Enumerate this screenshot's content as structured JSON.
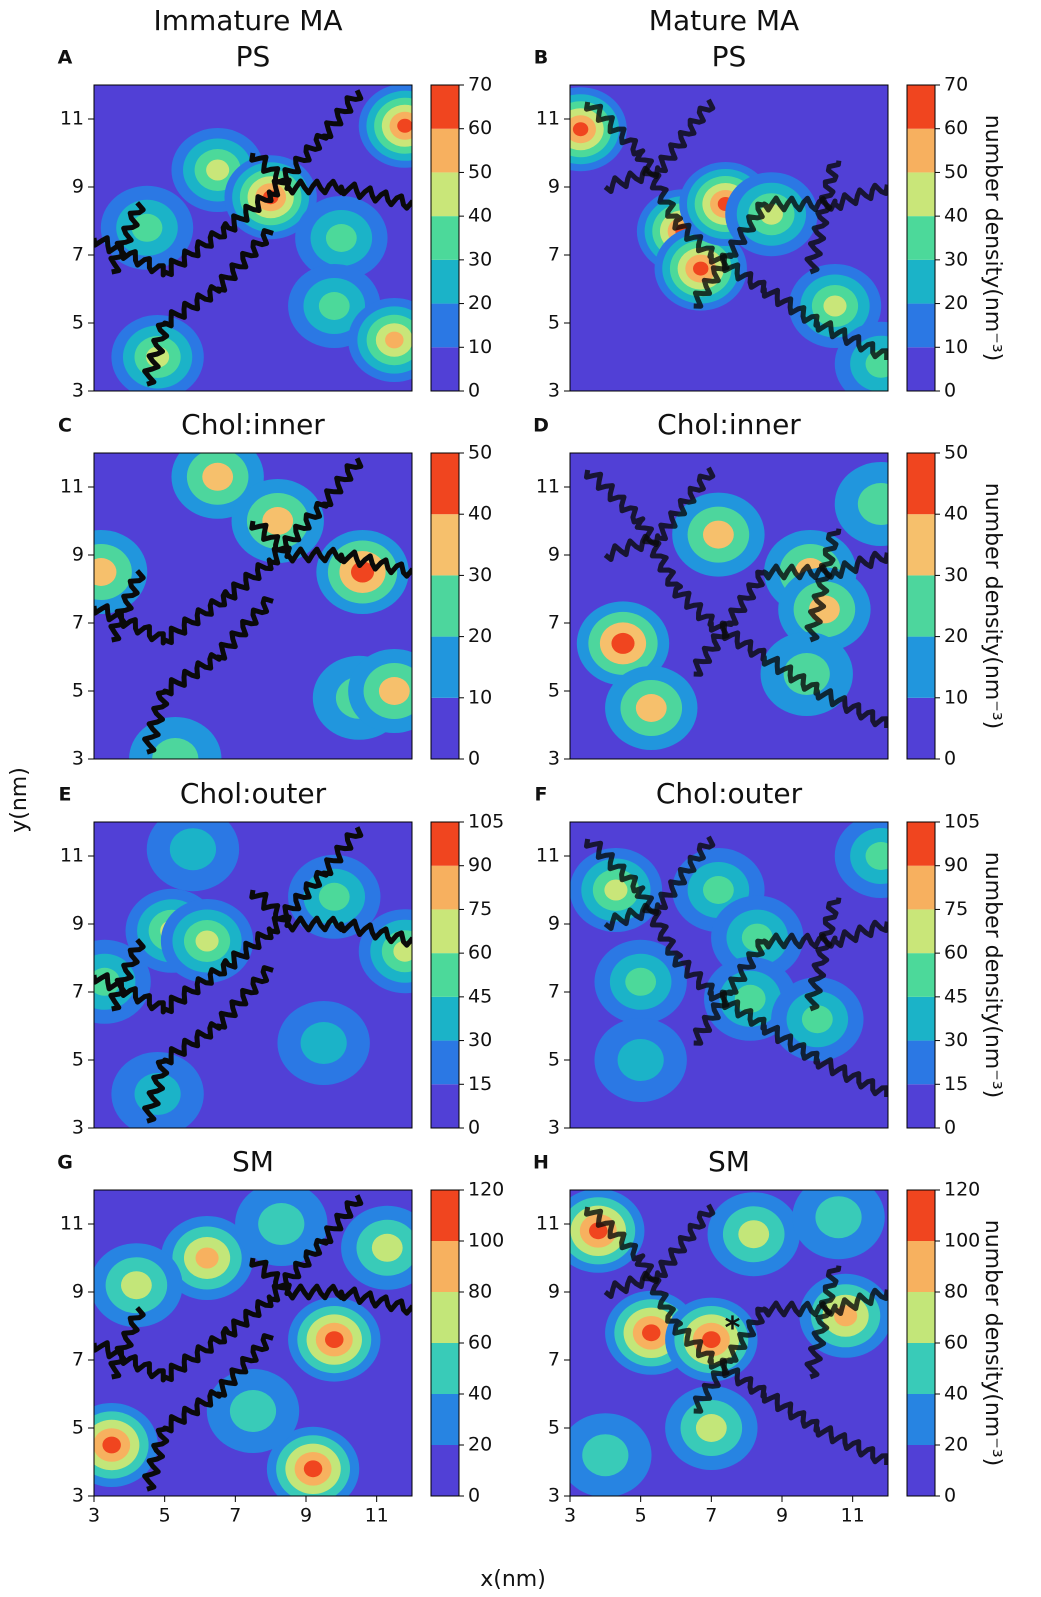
{
  "figure": {
    "column_titles": [
      "Immature MA",
      "Mature MA"
    ],
    "xlabel": "x(nm)",
    "ylabel": "y(nm)"
  },
  "chart_data": [
    {
      "type": "contour",
      "panel": "A",
      "title": "PS",
      "xlim": [
        3,
        12
      ],
      "ylim": [
        3,
        12
      ],
      "yticks": [
        3,
        5,
        7,
        9,
        11
      ],
      "levels": [
        0,
        10,
        20,
        30,
        40,
        50,
        60,
        70
      ],
      "colors": [
        "#5140d6",
        "#2b78e4",
        "#1bb3c8",
        "#4cd99a",
        "#c9e679",
        "#f7b05f",
        "#f0451f"
      ],
      "x": [
        4.5,
        6.5,
        8,
        10,
        11.8,
        9.8,
        11.5,
        4.8
      ],
      "y": [
        7.8,
        9.5,
        8.7,
        7.5,
        10.8,
        5.5,
        4.5,
        4
      ],
      "values": [
        35,
        45,
        70,
        40,
        65,
        40,
        55,
        50
      ]
    },
    {
      "type": "contour",
      "panel": "B",
      "title": "PS",
      "xlim": [
        3,
        12
      ],
      "ylim": [
        3,
        12
      ],
      "yticks": [
        3,
        5,
        7,
        9,
        11
      ],
      "levels": [
        0,
        10,
        20,
        30,
        40,
        50,
        60,
        70
      ],
      "colors": [
        "#5140d6",
        "#2b78e4",
        "#1bb3c8",
        "#4cd99a",
        "#c9e679",
        "#f7b05f",
        "#f0451f"
      ],
      "colorbar_label": "number density(nm⁻³)",
      "x": [
        3.3,
        6.2,
        6.7,
        7.4,
        8.7,
        10.5,
        11.8
      ],
      "y": [
        10.7,
        7.7,
        6.6,
        8.5,
        8.2,
        5.5,
        3.8
      ],
      "values": [
        65,
        70,
        65,
        70,
        45,
        45,
        40
      ]
    },
    {
      "type": "contour",
      "panel": "C",
      "title": "Chol:inner",
      "xlim": [
        3,
        12
      ],
      "ylim": [
        3,
        12
      ],
      "yticks": [
        3,
        5,
        7,
        9,
        11
      ],
      "levels": [
        0,
        10,
        20,
        30,
        40,
        50
      ],
      "colors": [
        "#5140d6",
        "#2196dd",
        "#4dd69d",
        "#f6c06c",
        "#f0451f"
      ],
      "x": [
        6.5,
        3.2,
        10.6,
        10.5,
        11.5,
        8.2,
        5.3
      ],
      "y": [
        11.3,
        8.5,
        8.5,
        4.8,
        5,
        10,
        3
      ],
      "values": [
        40,
        40,
        50,
        30,
        40,
        40,
        30
      ]
    },
    {
      "type": "contour",
      "panel": "D",
      "title": "Chol:inner",
      "xlim": [
        3,
        12
      ],
      "ylim": [
        3,
        12
      ],
      "yticks": [
        3,
        5,
        7,
        9,
        11
      ],
      "levels": [
        0,
        10,
        20,
        30,
        40,
        50
      ],
      "colors": [
        "#5140d6",
        "#2196dd",
        "#4dd69d",
        "#f6c06c",
        "#f0451f"
      ],
      "colorbar_label": "number density(nm⁻³)",
      "x": [
        4.5,
        5.3,
        7.2,
        9.8,
        10.2,
        9.7,
        11.8
      ],
      "y": [
        6.4,
        4.5,
        9.6,
        8.5,
        7.4,
        5.5,
        10.5
      ],
      "values": [
        50,
        40,
        40,
        40,
        40,
        30,
        30
      ]
    },
    {
      "type": "contour",
      "panel": "E",
      "title": "Chol:outer",
      "xlim": [
        3,
        12
      ],
      "ylim": [
        3,
        12
      ],
      "yticks": [
        3,
        5,
        7,
        9,
        11
      ],
      "levels": [
        0,
        15,
        30,
        45,
        60,
        75,
        90,
        105
      ],
      "colors": [
        "#5140d6",
        "#2b78e4",
        "#1bb3c8",
        "#4cd99a",
        "#c9e679",
        "#f7b05f",
        "#f0451f"
      ],
      "x": [
        3.3,
        5.2,
        6.2,
        9.8,
        5.8,
        9.5,
        4.8,
        11.8
      ],
      "y": [
        7.3,
        8.8,
        8.5,
        9.8,
        11.2,
        5.5,
        4,
        8.2
      ],
      "values": [
        60,
        75,
        75,
        60,
        45,
        45,
        45,
        75
      ]
    },
    {
      "type": "contour",
      "panel": "F",
      "title": "Chol:outer",
      "xlim": [
        3,
        12
      ],
      "ylim": [
        3,
        12
      ],
      "yticks": [
        3,
        5,
        7,
        9,
        11
      ],
      "levels": [
        0,
        15,
        30,
        45,
        60,
        75,
        90,
        105
      ],
      "colors": [
        "#5140d6",
        "#2b78e4",
        "#1bb3c8",
        "#4cd99a",
        "#c9e679",
        "#f7b05f",
        "#f0451f"
      ],
      "colorbar_label": "number density(nm⁻³)",
      "x": [
        4.3,
        5,
        7.2,
        8.3,
        8.1,
        10,
        5,
        11.8
      ],
      "y": [
        10,
        7.3,
        10,
        8.6,
        6.8,
        6.2,
        5,
        11
      ],
      "values": [
        75,
        60,
        60,
        60,
        60,
        60,
        45,
        60
      ]
    },
    {
      "type": "contour",
      "panel": "G",
      "title": "SM",
      "xlim": [
        3,
        12
      ],
      "ylim": [
        3,
        12
      ],
      "xticks": [
        3,
        5,
        7,
        9,
        11
      ],
      "yticks": [
        3,
        5,
        7,
        9,
        11
      ],
      "levels": [
        0,
        20,
        40,
        60,
        80,
        100,
        120
      ],
      "colors": [
        "#5140d6",
        "#2784e2",
        "#39cbb8",
        "#c3e679",
        "#f7b15f",
        "#f0451f"
      ],
      "x": [
        3.5,
        6.2,
        9.8,
        9.2,
        11.3,
        7.5,
        4.2,
        8.3
      ],
      "y": [
        4.5,
        10,
        7.6,
        3.8,
        10.3,
        5.5,
        9.2,
        11
      ],
      "values": [
        105,
        85,
        105,
        110,
        75,
        60,
        65,
        60
      ]
    },
    {
      "type": "contour",
      "panel": "H",
      "title": "SM",
      "xlim": [
        3,
        12
      ],
      "ylim": [
        3,
        12
      ],
      "xticks": [
        3,
        5,
        7,
        9,
        11
      ],
      "yticks": [
        3,
        5,
        7,
        9,
        11
      ],
      "levels": [
        0,
        20,
        40,
        60,
        80,
        100,
        120
      ],
      "colors": [
        "#5140d6",
        "#2784e2",
        "#39cbb8",
        "#c3e679",
        "#f7b15f",
        "#f0451f"
      ],
      "colorbar_label": "number density(nm⁻³)",
      "x": [
        3.8,
        5.3,
        7,
        10.8,
        4,
        7,
        8.2,
        10.6
      ],
      "y": [
        10.8,
        7.8,
        7.6,
        8.3,
        4.2,
        5,
        10.7,
        11.2
      ],
      "values": [
        110,
        110,
        110,
        85,
        60,
        75,
        80,
        60
      ],
      "annotations": [
        {
          "text": "*",
          "x": 7.6,
          "y": 7.9
        }
      ]
    }
  ]
}
